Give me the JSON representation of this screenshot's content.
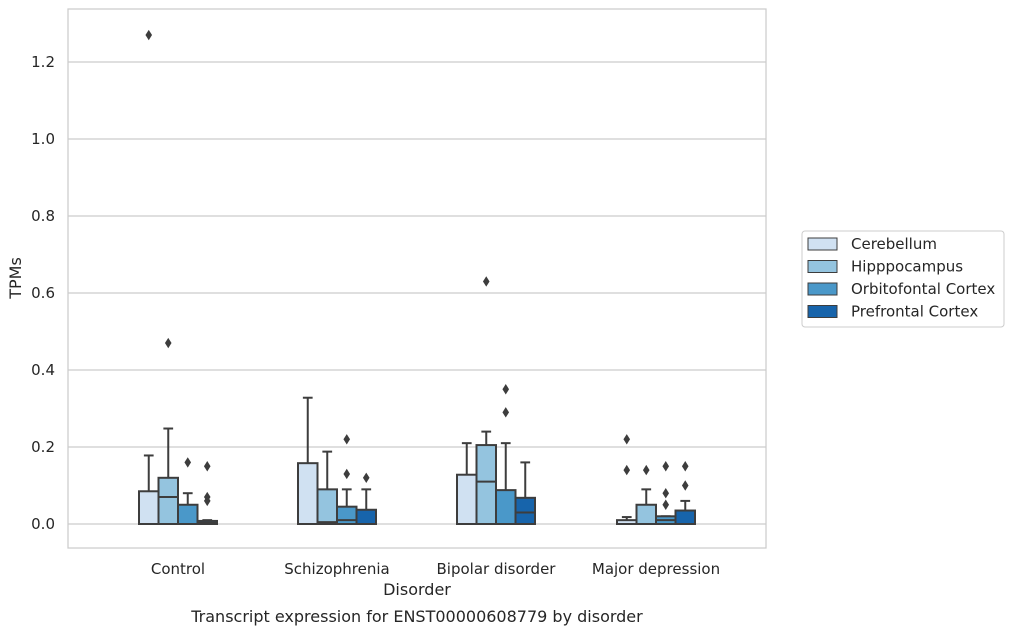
{
  "chart_data": {
    "type": "box",
    "caption": "Transcript expression for ENST00000608779 by disorder",
    "xlabel": "Disorder",
    "ylabel": "TPMs",
    "ylim": [
      -0.06,
      1.34
    ],
    "yticks": [
      0.0,
      0.2,
      0.4,
      0.6,
      0.8,
      1.0,
      1.2
    ],
    "ytick_labels": [
      "0.0",
      "0.2",
      "0.4",
      "0.6",
      "0.8",
      "1.0",
      "1.2"
    ],
    "grid": "horizontal",
    "legend_position": "right",
    "categories": [
      "Control",
      "Schizophrenia",
      "Bipolar disorder",
      "Major depression"
    ],
    "series": [
      {
        "name": "Cerebellum",
        "color": "#d0e1f2",
        "boxes": [
          {
            "q1": 0.0,
            "median": 0.0,
            "q3": 0.085,
            "whisker_low": 0.0,
            "whisker_high": 0.178,
            "outliers": [
              1.27
            ]
          },
          {
            "q1": 0.0,
            "median": 0.0,
            "q3": 0.158,
            "whisker_low": 0.0,
            "whisker_high": 0.328,
            "outliers": []
          },
          {
            "q1": 0.0,
            "median": 0.0,
            "q3": 0.128,
            "whisker_low": 0.0,
            "whisker_high": 0.21,
            "outliers": []
          },
          {
            "q1": 0.0,
            "median": 0.0,
            "q3": 0.01,
            "whisker_low": 0.0,
            "whisker_high": 0.018,
            "outliers": [
              0.22,
              0.14
            ]
          }
        ]
      },
      {
        "name": "Hipppocampus",
        "color": "#94c4df",
        "boxes": [
          {
            "q1": 0.0,
            "median": 0.07,
            "q3": 0.12,
            "whisker_low": 0.0,
            "whisker_high": 0.248,
            "outliers": [
              0.47
            ]
          },
          {
            "q1": 0.0,
            "median": 0.005,
            "q3": 0.09,
            "whisker_low": 0.0,
            "whisker_high": 0.188,
            "outliers": []
          },
          {
            "q1": 0.0,
            "median": 0.11,
            "q3": 0.205,
            "whisker_low": 0.0,
            "whisker_high": 0.24,
            "outliers": [
              0.63
            ]
          },
          {
            "q1": 0.0,
            "median": 0.0,
            "q3": 0.05,
            "whisker_low": 0.0,
            "whisker_high": 0.09,
            "outliers": [
              0.14
            ]
          }
        ]
      },
      {
        "name": "Orbitofontal Cortex",
        "color": "#4a98c9",
        "boxes": [
          {
            "q1": 0.0,
            "median": 0.0,
            "q3": 0.05,
            "whisker_low": 0.0,
            "whisker_high": 0.08,
            "outliers": [
              0.16
            ]
          },
          {
            "q1": 0.0,
            "median": 0.01,
            "q3": 0.045,
            "whisker_low": 0.0,
            "whisker_high": 0.09,
            "outliers": [
              0.22,
              0.13
            ]
          },
          {
            "q1": 0.0,
            "median": 0.0,
            "q3": 0.088,
            "whisker_low": 0.0,
            "whisker_high": 0.21,
            "outliers": [
              0.35,
              0.29
            ]
          },
          {
            "q1": 0.0,
            "median": 0.01,
            "q3": 0.02,
            "whisker_low": 0.0,
            "whisker_high": 0.02,
            "outliers": [
              0.15,
              0.08,
              0.05
            ]
          }
        ]
      },
      {
        "name": "Prefrontal Cortex",
        "color": "#1764ab",
        "boxes": [
          {
            "q1": 0.0,
            "median": 0.003,
            "q3": 0.008,
            "whisker_low": 0.0,
            "whisker_high": 0.01,
            "outliers": [
              0.15,
              0.07,
              0.06
            ]
          },
          {
            "q1": 0.0,
            "median": 0.0,
            "q3": 0.037,
            "whisker_low": 0.0,
            "whisker_high": 0.09,
            "outliers": [
              0.12
            ]
          },
          {
            "q1": 0.0,
            "median": 0.03,
            "q3": 0.068,
            "whisker_low": 0.0,
            "whisker_high": 0.16,
            "outliers": []
          },
          {
            "q1": 0.0,
            "median": 0.0,
            "q3": 0.035,
            "whisker_low": 0.0,
            "whisker_high": 0.06,
            "outliers": [
              0.15,
              0.1
            ]
          }
        ]
      }
    ]
  }
}
